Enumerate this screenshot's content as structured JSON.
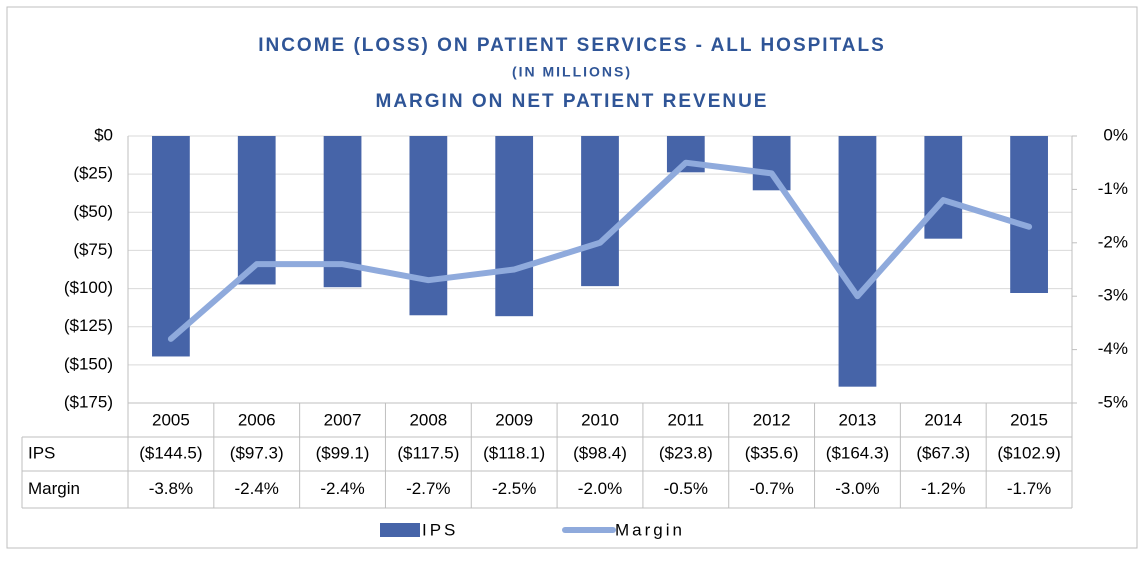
{
  "chart_data": {
    "type": "bar",
    "title": "INCOME (LOSS) ON PATIENT SERVICES - ALL HOSPITALS",
    "subtitle": "(IN MILLIONS)",
    "subtitle2": "MARGIN ON NET PATIENT REVENUE",
    "categories": [
      "2005",
      "2006",
      "2007",
      "2008",
      "2009",
      "2010",
      "2011",
      "2012",
      "2013",
      "2014",
      "2015"
    ],
    "series": [
      {
        "name": "IPS",
        "type": "bar",
        "color": "#4664a8",
        "values": [
          -144.5,
          -97.3,
          -99.1,
          -117.5,
          -118.1,
          -98.4,
          -23.8,
          -35.6,
          -164.3,
          -67.3,
          -102.9
        ],
        "value_labels": [
          "($144.5)",
          "($97.3)",
          "($99.1)",
          "($117.5)",
          "($118.1)",
          "($98.4)",
          "($23.8)",
          "($35.6)",
          "($164.3)",
          "($67.3)",
          "($102.9)"
        ]
      },
      {
        "name": "Margin",
        "type": "line",
        "axis": "y2",
        "color": "#8faadc",
        "values": [
          -3.8,
          -2.4,
          -2.4,
          -2.7,
          -2.5,
          -2.0,
          -0.5,
          -0.7,
          -3.0,
          -1.2,
          -1.7
        ],
        "value_labels": [
          "-3.8%",
          "-2.4%",
          "-2.4%",
          "-2.7%",
          "-2.5%",
          "-2.0%",
          "-0.5%",
          "-0.7%",
          "-3.0%",
          "-1.2%",
          "-1.7%"
        ]
      }
    ],
    "ylim": [
      -175,
      0
    ],
    "yticks": [
      {
        "value": 0,
        "label": "$0"
      },
      {
        "value": -25,
        "label": "($25)"
      },
      {
        "value": -50,
        "label": "($50)"
      },
      {
        "value": -75,
        "label": "($75)"
      },
      {
        "value": -100,
        "label": "($100)"
      },
      {
        "value": -125,
        "label": "($125)"
      },
      {
        "value": -150,
        "label": "($150)"
      },
      {
        "value": -175,
        "label": "($175)"
      }
    ],
    "y2lim": [
      -5,
      0
    ],
    "y2ticks": [
      {
        "value": 0,
        "label": "0%"
      },
      {
        "value": -1,
        "label": "-1%"
      },
      {
        "value": -2,
        "label": "-2%"
      },
      {
        "value": -3,
        "label": "-3%"
      },
      {
        "value": -4,
        "label": "-4%"
      },
      {
        "value": -5,
        "label": "-5%"
      }
    ],
    "grid": true
  }
}
